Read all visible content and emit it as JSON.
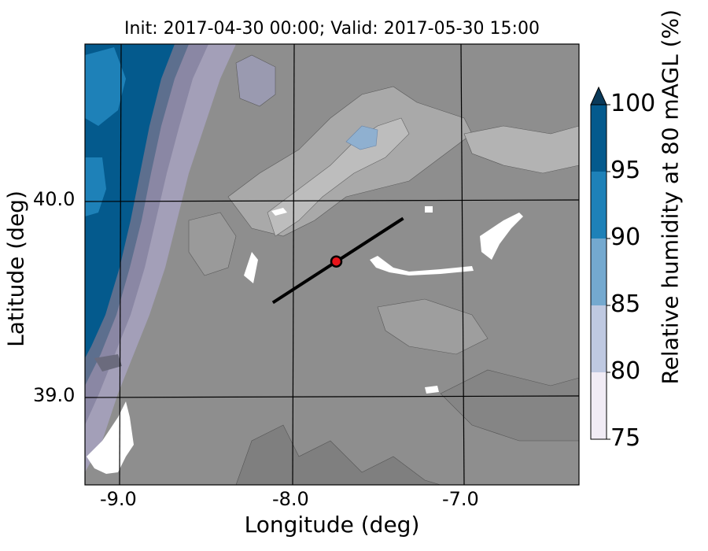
{
  "title": "Init: 2017-04-30 00:00; Valid: 2017-05-30 15:00",
  "axes": {
    "xlabel": "Longitude (deg)",
    "ylabel": "Latitude (deg)",
    "xticks": [
      "-9.0",
      "-8.0",
      "-7.0"
    ],
    "yticks": [
      "40.0",
      "39.0"
    ]
  },
  "colorbar": {
    "label": "Relative humidity at 80 mAGL (%)",
    "ticks": [
      "100",
      "95",
      "90",
      "85",
      "80",
      "75"
    ],
    "colors": [
      "#f1ecf5",
      "#bfc9e1",
      "#74a9cf",
      "#1e81b8",
      "#045a8d",
      "#0a3a5a"
    ],
    "extend": "max"
  },
  "map": {
    "terrain_gray": "#8e8e8e",
    "marker": {
      "lon": -7.75,
      "lat": 39.69,
      "color": "#e8141a"
    },
    "transect": {
      "start": {
        "lon": -8.12,
        "lat": 39.48
      },
      "end": {
        "lon": -7.36,
        "lat": 39.91
      }
    }
  }
}
